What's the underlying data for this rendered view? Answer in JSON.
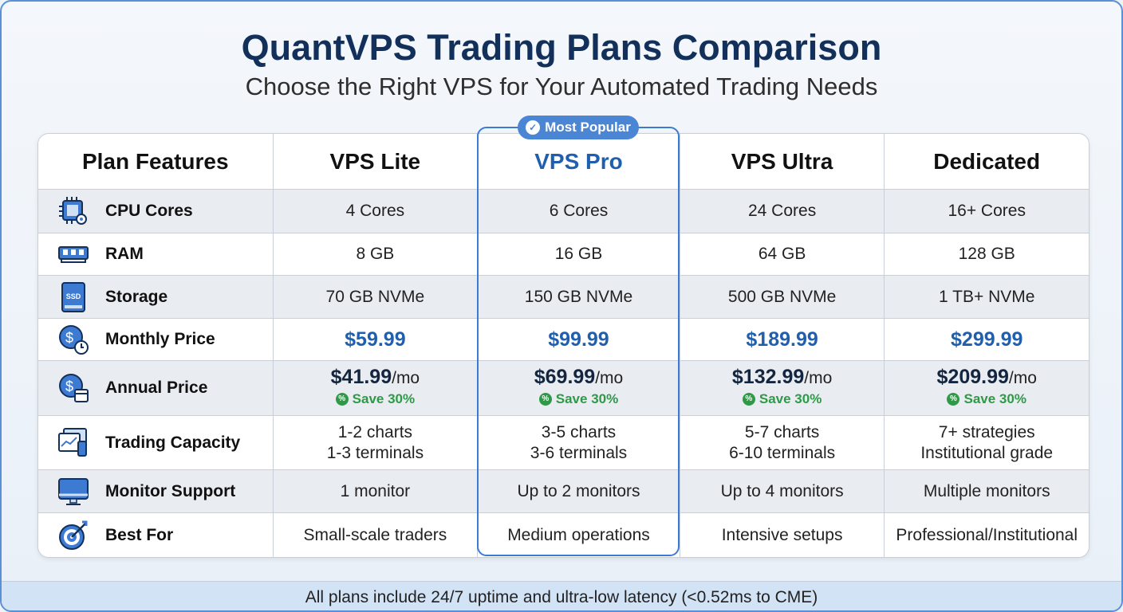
{
  "title": "QuantVPS Trading Plans Comparison",
  "subtitle": "Choose the Right VPS for Your Automated Trading Needs",
  "badge": "Most Popular",
  "accent": "#3d7bd2",
  "headers": [
    "Plan Features",
    "VPS Lite",
    "VPS Pro",
    "VPS Ultra",
    "Dedicated"
  ],
  "rows": [
    {
      "feature": "CPU Cores",
      "icon": "cpu-icon",
      "values": [
        "4 Cores",
        "6 Cores",
        "24 Cores",
        "16+ Cores"
      ]
    },
    {
      "feature": "RAM",
      "icon": "ram-icon",
      "values": [
        "8 GB",
        "16 GB",
        "64 GB",
        "128 GB"
      ]
    },
    {
      "feature": "Storage",
      "icon": "ssd-icon",
      "icon_text": "SSD",
      "values": [
        "70 GB NVMe",
        "150 GB NVMe",
        "500 GB NVMe",
        "1 TB+ NVMe"
      ]
    },
    {
      "feature": "Monthly Price",
      "icon": "dollar-clock-icon",
      "values": [
        "$59.99",
        "$99.99",
        "$189.99",
        "$299.99"
      ]
    },
    {
      "feature": "Annual Price",
      "icon": "dollar-calendar-icon",
      "values": [
        "$41.99",
        "$69.99",
        "$132.99",
        "$209.99"
      ],
      "unit": "/mo",
      "save": "Save 30%"
    },
    {
      "feature": "Trading Capacity",
      "icon": "trading-devices-icon",
      "values": [
        [
          "1-2 charts",
          "1-3 terminals"
        ],
        [
          "3-5 charts",
          "3-6 terminals"
        ],
        [
          "5-7 charts",
          "6-10 terminals"
        ],
        [
          "7+ strategies",
          "Institutional grade"
        ]
      ]
    },
    {
      "feature": "Monitor Support",
      "icon": "monitor-icon",
      "values": [
        "1 monitor",
        "Up to 2 monitors",
        "Up to 4 monitors",
        "Multiple monitors"
      ]
    },
    {
      "feature": "Best For",
      "icon": "target-icon",
      "values": [
        "Small-scale traders",
        "Medium operations",
        "Intensive setups",
        "Professional/Institutional"
      ]
    }
  ],
  "footer": "All plans include 24/7 uptime and ultra-low latency (<0.52ms to CME)"
}
